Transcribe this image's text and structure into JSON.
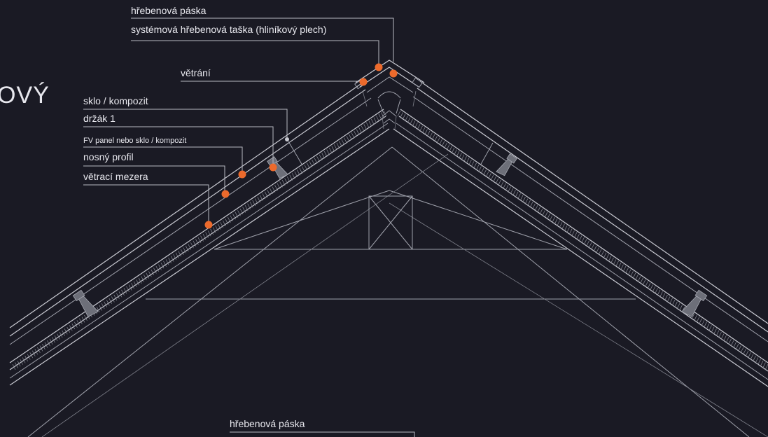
{
  "title_fragment": "OVÝ",
  "callouts": {
    "ridge_tape_top": "hřebenová páska",
    "ridge_tile": "systémová hřebenová taška (hliníkový plech)",
    "ventilation": "větrání",
    "glass_composite": "sklo / kompozit",
    "holder": "držák 1",
    "pv_panel": "FV panel nebo sklo / kompozit",
    "support_profile": "nosný profil",
    "air_gap": "větrací mezera",
    "ridge_tape_bottom": "hřebenová páska"
  },
  "colors": {
    "background": "#1a1a24",
    "line": "#c9cad2",
    "marker": "#ec6a2c",
    "text": "#e8e8ee"
  }
}
